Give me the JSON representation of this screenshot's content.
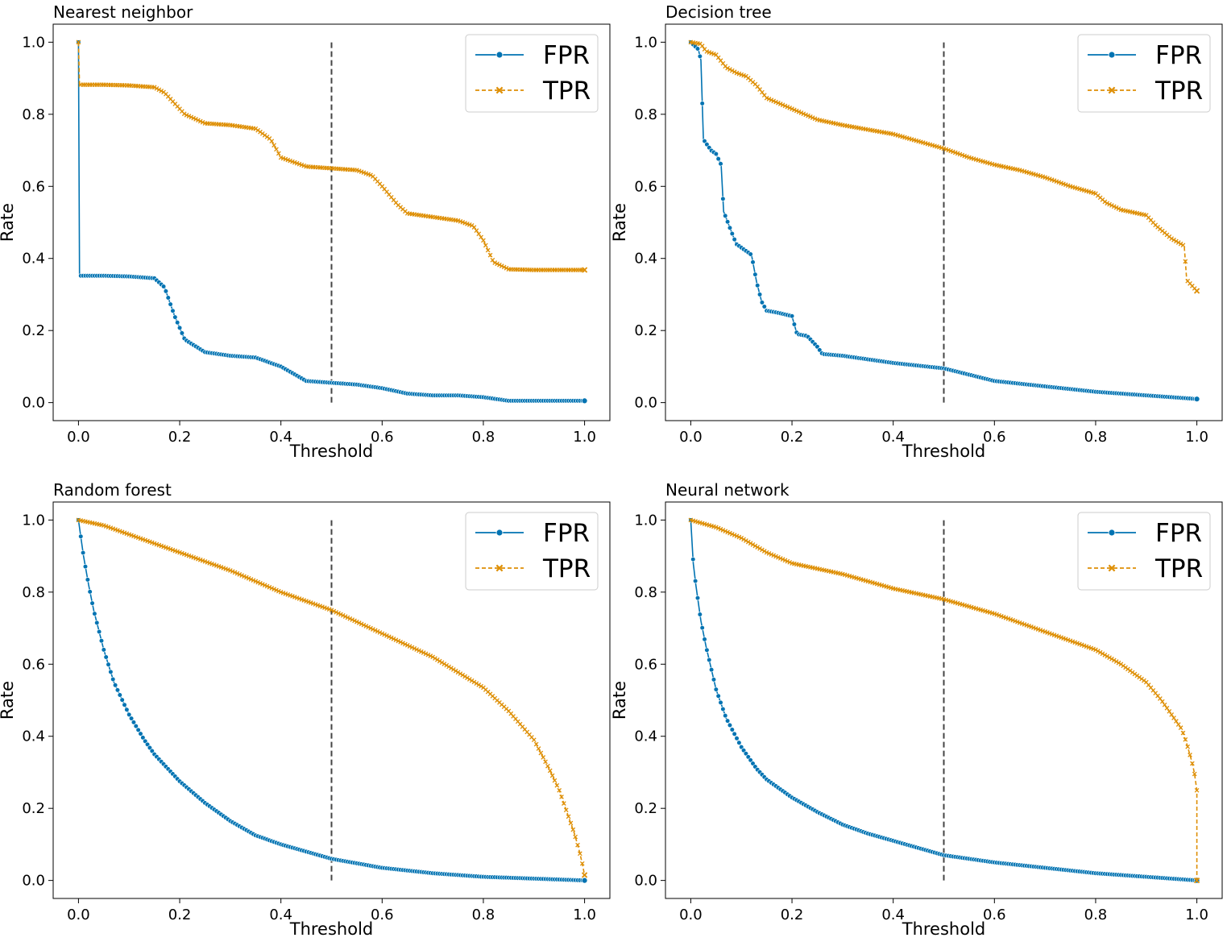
{
  "colors": {
    "fpr": "#0173b2",
    "fpr_marker_edge": "#ffffff",
    "tpr": "#de8f05",
    "threshold_line": "#444444",
    "axes": "#000000",
    "background": "#ffffff",
    "legend_border": "#cccccc"
  },
  "chart_data": [
    {
      "type": "line",
      "title": "Nearest neighbor",
      "xlabel": "Threshold",
      "ylabel": "Rate",
      "xlim": [
        -0.05,
        1.05
      ],
      "ylim": [
        -0.05,
        1.05
      ],
      "xticks": [
        "0.0",
        "0.2",
        "0.4",
        "0.6",
        "0.8",
        "1.0"
      ],
      "yticks": [
        "0.0",
        "0.2",
        "0.4",
        "0.6",
        "0.8",
        "1.0"
      ],
      "grid": false,
      "legend_position": "top-right",
      "threshold_marker": 0.5,
      "series": [
        {
          "name": "FPR",
          "marker": "circle",
          "linestyle": "solid",
          "x": [
            0.0,
            0.002,
            0.05,
            0.1,
            0.15,
            0.17,
            0.19,
            0.21,
            0.25,
            0.3,
            0.35,
            0.4,
            0.45,
            0.5,
            0.55,
            0.6,
            0.65,
            0.7,
            0.75,
            0.8,
            0.85,
            0.9,
            0.95,
            1.0
          ],
          "y": [
            1.0,
            0.352,
            0.352,
            0.35,
            0.345,
            0.32,
            0.24,
            0.175,
            0.14,
            0.13,
            0.125,
            0.1,
            0.06,
            0.055,
            0.05,
            0.04,
            0.025,
            0.02,
            0.02,
            0.015,
            0.005,
            0.005,
            0.005,
            0.005
          ]
        },
        {
          "name": "TPR",
          "marker": "x",
          "linestyle": "dashed",
          "x": [
            0.0,
            0.002,
            0.05,
            0.1,
            0.15,
            0.17,
            0.19,
            0.21,
            0.25,
            0.3,
            0.35,
            0.38,
            0.4,
            0.45,
            0.5,
            0.55,
            0.58,
            0.6,
            0.63,
            0.65,
            0.7,
            0.75,
            0.78,
            0.8,
            0.82,
            0.85,
            0.9,
            1.0
          ],
          "y": [
            1.0,
            0.882,
            0.882,
            0.88,
            0.875,
            0.86,
            0.83,
            0.8,
            0.775,
            0.77,
            0.76,
            0.73,
            0.68,
            0.655,
            0.65,
            0.645,
            0.63,
            0.6,
            0.55,
            0.525,
            0.515,
            0.505,
            0.49,
            0.45,
            0.39,
            0.37,
            0.368,
            0.368
          ]
        }
      ]
    },
    {
      "type": "line",
      "title": "Decision tree",
      "xlabel": "Threshold",
      "ylabel": "Rate",
      "xlim": [
        -0.05,
        1.05
      ],
      "ylim": [
        -0.05,
        1.05
      ],
      "xticks": [
        "0.0",
        "0.2",
        "0.4",
        "0.6",
        "0.8",
        "1.0"
      ],
      "yticks": [
        "0.0",
        "0.2",
        "0.4",
        "0.6",
        "0.8",
        "1.0"
      ],
      "grid": false,
      "legend_position": "top-right",
      "threshold_marker": 0.5,
      "series": [
        {
          "name": "FPR",
          "marker": "circle",
          "linestyle": "solid",
          "x": [
            0.0,
            0.015,
            0.02,
            0.025,
            0.04,
            0.05,
            0.06,
            0.065,
            0.08,
            0.09,
            0.1,
            0.12,
            0.13,
            0.14,
            0.15,
            0.17,
            0.2,
            0.21,
            0.23,
            0.25,
            0.26,
            0.3,
            0.4,
            0.5,
            0.6,
            0.7,
            0.8,
            0.9,
            1.0
          ],
          "y": [
            1.0,
            0.98,
            0.95,
            0.73,
            0.7,
            0.69,
            0.66,
            0.53,
            0.475,
            0.44,
            0.43,
            0.41,
            0.335,
            0.28,
            0.255,
            0.25,
            0.24,
            0.19,
            0.185,
            0.155,
            0.135,
            0.13,
            0.11,
            0.095,
            0.06,
            0.045,
            0.03,
            0.02,
            0.01
          ]
        },
        {
          "name": "TPR",
          "marker": "x",
          "linestyle": "dashed",
          "x": [
            0.0,
            0.02,
            0.03,
            0.05,
            0.07,
            0.09,
            0.11,
            0.13,
            0.15,
            0.2,
            0.25,
            0.3,
            0.4,
            0.45,
            0.5,
            0.55,
            0.6,
            0.65,
            0.7,
            0.75,
            0.8,
            0.82,
            0.85,
            0.9,
            0.92,
            0.95,
            0.975,
            0.98,
            1.0
          ],
          "y": [
            1.0,
            0.995,
            0.975,
            0.965,
            0.93,
            0.915,
            0.905,
            0.88,
            0.845,
            0.815,
            0.785,
            0.77,
            0.745,
            0.725,
            0.705,
            0.68,
            0.66,
            0.645,
            0.625,
            0.6,
            0.58,
            0.555,
            0.535,
            0.52,
            0.49,
            0.455,
            0.435,
            0.34,
            0.31
          ]
        }
      ]
    },
    {
      "type": "line",
      "title": "Random forest",
      "xlabel": "Threshold",
      "ylabel": "Rate",
      "xlim": [
        -0.05,
        1.05
      ],
      "ylim": [
        -0.05,
        1.05
      ],
      "xticks": [
        "0.0",
        "0.2",
        "0.4",
        "0.6",
        "0.8",
        "1.0"
      ],
      "yticks": [
        "0.0",
        "0.2",
        "0.4",
        "0.6",
        "0.8",
        "1.0"
      ],
      "grid": false,
      "legend_position": "top-right",
      "threshold_marker": 0.5,
      "series": [
        {
          "name": "FPR",
          "marker": "circle",
          "linestyle": "solid",
          "x": [
            0.0,
            0.005,
            0.01,
            0.02,
            0.03,
            0.05,
            0.07,
            0.1,
            0.13,
            0.15,
            0.2,
            0.25,
            0.3,
            0.35,
            0.4,
            0.45,
            0.5,
            0.6,
            0.7,
            0.8,
            0.9,
            1.0
          ],
          "y": [
            1.0,
            0.95,
            0.9,
            0.82,
            0.75,
            0.64,
            0.55,
            0.46,
            0.39,
            0.35,
            0.275,
            0.215,
            0.165,
            0.125,
            0.1,
            0.08,
            0.06,
            0.035,
            0.02,
            0.01,
            0.005,
            0.0
          ]
        },
        {
          "name": "TPR",
          "marker": "x",
          "linestyle": "dashed",
          "x": [
            0.0,
            0.05,
            0.1,
            0.2,
            0.3,
            0.4,
            0.5,
            0.6,
            0.7,
            0.8,
            0.85,
            0.9,
            0.93,
            0.95,
            0.97,
            0.98,
            0.99,
            0.995,
            1.0
          ],
          "y": [
            1.0,
            0.985,
            0.96,
            0.91,
            0.86,
            0.8,
            0.75,
            0.685,
            0.62,
            0.535,
            0.47,
            0.39,
            0.31,
            0.25,
            0.17,
            0.13,
            0.08,
            0.05,
            0.015
          ]
        }
      ]
    },
    {
      "type": "line",
      "title": "Neural network",
      "xlabel": "Threshold",
      "ylabel": "Rate",
      "xlim": [
        -0.05,
        1.05
      ],
      "ylim": [
        -0.05,
        1.05
      ],
      "xticks": [
        "0.0",
        "0.2",
        "0.4",
        "0.6",
        "0.8",
        "1.0"
      ],
      "yticks": [
        "0.0",
        "0.2",
        "0.4",
        "0.6",
        "0.8",
        "1.0"
      ],
      "grid": false,
      "legend_position": "top-right",
      "threshold_marker": 0.5,
      "series": [
        {
          "name": "FPR",
          "marker": "circle",
          "linestyle": "solid",
          "x": [
            0.0,
            0.005,
            0.01,
            0.02,
            0.03,
            0.05,
            0.07,
            0.1,
            0.13,
            0.15,
            0.2,
            0.25,
            0.3,
            0.35,
            0.4,
            0.45,
            0.5,
            0.6,
            0.7,
            0.8,
            0.9,
            1.0
          ],
          "y": [
            1.0,
            0.88,
            0.82,
            0.72,
            0.65,
            0.53,
            0.45,
            0.37,
            0.31,
            0.28,
            0.23,
            0.19,
            0.155,
            0.13,
            0.11,
            0.09,
            0.07,
            0.05,
            0.035,
            0.02,
            0.01,
            0.0
          ]
        },
        {
          "name": "TPR",
          "marker": "x",
          "linestyle": "dashed",
          "x": [
            0.0,
            0.05,
            0.1,
            0.15,
            0.2,
            0.3,
            0.4,
            0.5,
            0.6,
            0.7,
            0.8,
            0.85,
            0.9,
            0.93,
            0.95,
            0.97,
            0.98,
            0.99,
            0.995,
            1.0,
            1.0
          ],
          "y": [
            1.0,
            0.98,
            0.95,
            0.91,
            0.88,
            0.85,
            0.81,
            0.78,
            0.74,
            0.69,
            0.64,
            0.6,
            0.55,
            0.5,
            0.46,
            0.42,
            0.38,
            0.33,
            0.3,
            0.25,
            0.0
          ]
        }
      ]
    }
  ]
}
